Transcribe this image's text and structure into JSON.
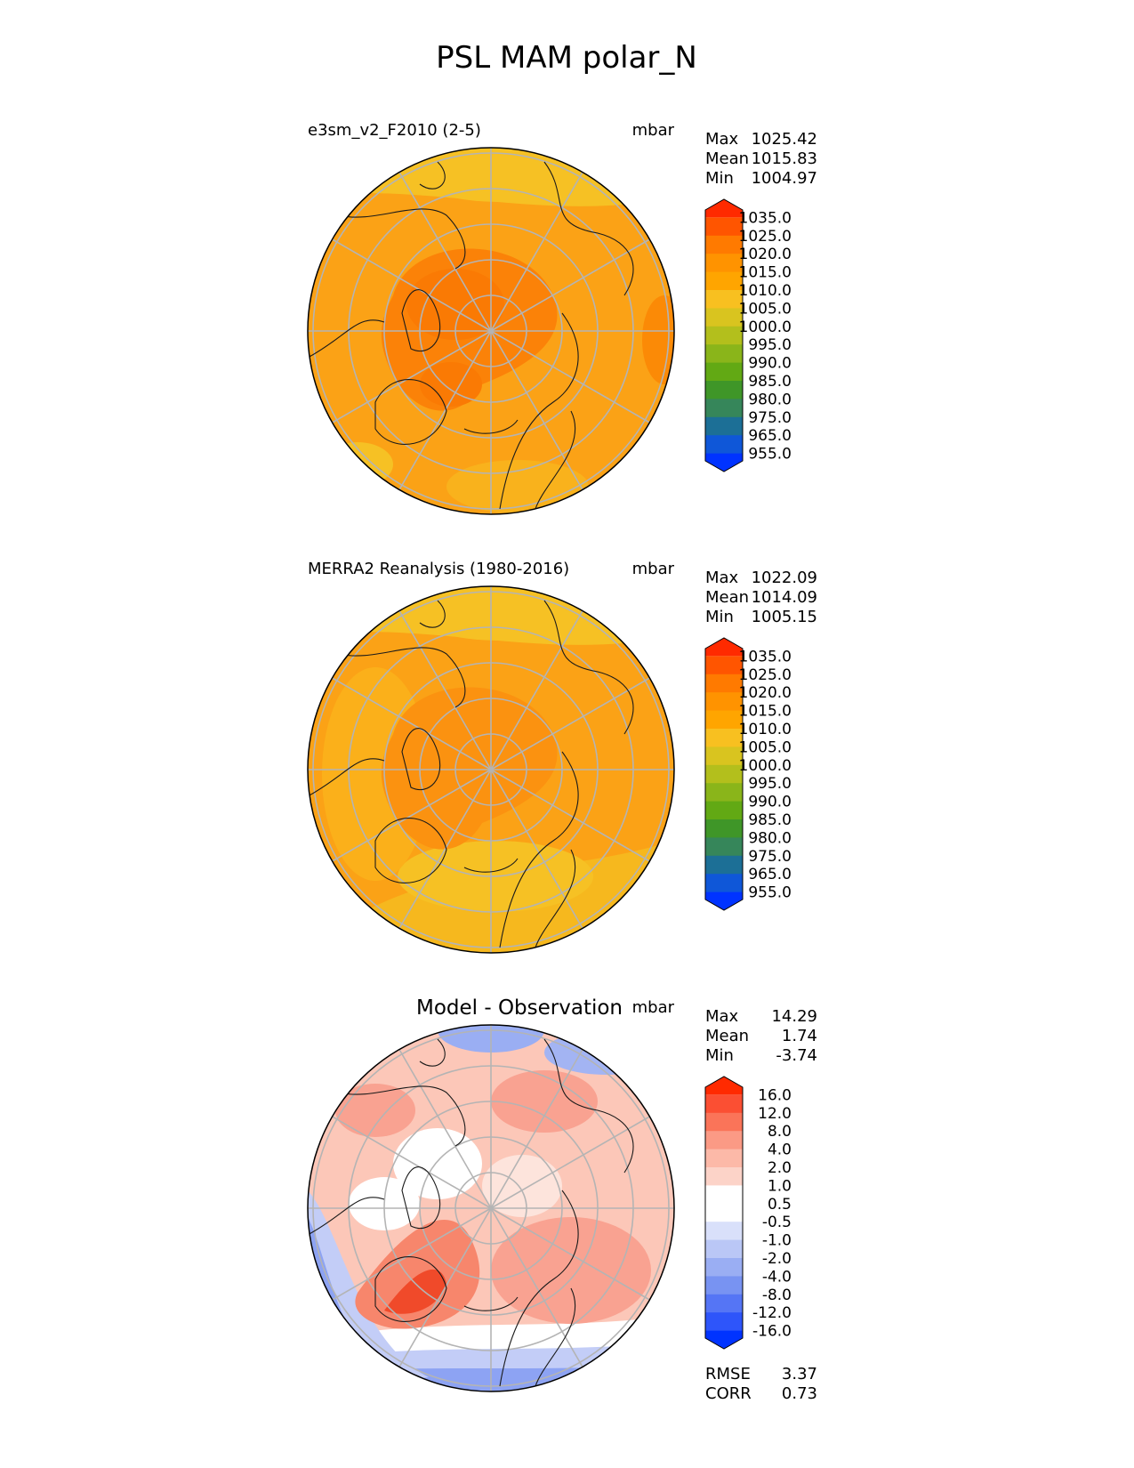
{
  "title": "PSL MAM polar_N",
  "panels": [
    {
      "id": "model",
      "title": "e3sm_v2_F2010 (2-5)",
      "units": "mbar",
      "stats": [
        {
          "label": "Max",
          "value": "1025.42"
        },
        {
          "label": "Mean",
          "value": "1015.83"
        },
        {
          "label": "Min",
          "value": "1004.97"
        }
      ],
      "colorbar": {
        "ticks": [
          "1035.0",
          "1025.0",
          "1020.0",
          "1015.0",
          "1010.0",
          "1005.0",
          "1000.0",
          "995.0",
          "990.0",
          "985.0",
          "980.0",
          "975.0",
          "965.0",
          "955.0"
        ],
        "colors": [
          "#ff2a00",
          "#ff5500",
          "#ff7a00",
          "#ff9300",
          "#ffa500",
          "#f8c020",
          "#d9c41f",
          "#b3bf1c",
          "#8ab51a",
          "#62a914",
          "#3f9628",
          "#36865a",
          "#1c6f96",
          "#0f57d8",
          "#0033ff"
        ],
        "extend_top": "#ff2a00",
        "extend_bottom": "#0033ff"
      },
      "field": "model"
    },
    {
      "id": "obs",
      "title": "MERRA2 Reanalysis (1980-2016)",
      "units": "mbar",
      "stats": [
        {
          "label": "Max",
          "value": "1022.09"
        },
        {
          "label": "Mean",
          "value": "1014.09"
        },
        {
          "label": "Min",
          "value": "1005.15"
        }
      ],
      "colorbar": {
        "ticks": [
          "1035.0",
          "1025.0",
          "1020.0",
          "1015.0",
          "1010.0",
          "1005.0",
          "1000.0",
          "995.0",
          "990.0",
          "985.0",
          "980.0",
          "975.0",
          "965.0",
          "955.0"
        ],
        "colors": [
          "#ff2a00",
          "#ff5500",
          "#ff7a00",
          "#ff9300",
          "#ffa500",
          "#f8c020",
          "#d9c41f",
          "#b3bf1c",
          "#8ab51a",
          "#62a914",
          "#3f9628",
          "#36865a",
          "#1c6f96",
          "#0f57d8",
          "#0033ff"
        ],
        "extend_top": "#ff2a00",
        "extend_bottom": "#0033ff"
      },
      "field": "obs"
    },
    {
      "id": "diff",
      "title": "Model - Observation",
      "units": "mbar",
      "stats": [
        {
          "label": "Max",
          "value": "14.29"
        },
        {
          "label": "Mean",
          "value": "1.74"
        },
        {
          "label": "Min",
          "value": "-3.74"
        }
      ],
      "colorbar": {
        "ticks": [
          "16.0",
          "12.0",
          "8.0",
          "4.0",
          "2.0",
          "1.0",
          "0.5",
          "-0.5",
          "-1.0",
          "-2.0",
          "-4.0",
          "-8.0",
          "-12.0",
          "-16.0"
        ],
        "colors": [
          "#ff2a00",
          "#fb4f33",
          "#fa7459",
          "#fb9a85",
          "#fcb9a8",
          "#fcd3c8",
          "#ffffff",
          "#ffffff",
          "#d9e0fa",
          "#bac7f6",
          "#9aaef3",
          "#7893f2",
          "#5575f5",
          "#2e55fa",
          "#0033ff"
        ],
        "extend_top": "#ff2a00",
        "extend_bottom": "#0033ff"
      },
      "field": "diff",
      "metrics": [
        {
          "label": "RMSE",
          "value": "3.37"
        },
        {
          "label": "CORR",
          "value": "0.73"
        }
      ]
    }
  ],
  "colors": {
    "map_edge": "#000000",
    "gridlines": "#b4b4b4",
    "coastline": "#1a1a1a"
  }
}
